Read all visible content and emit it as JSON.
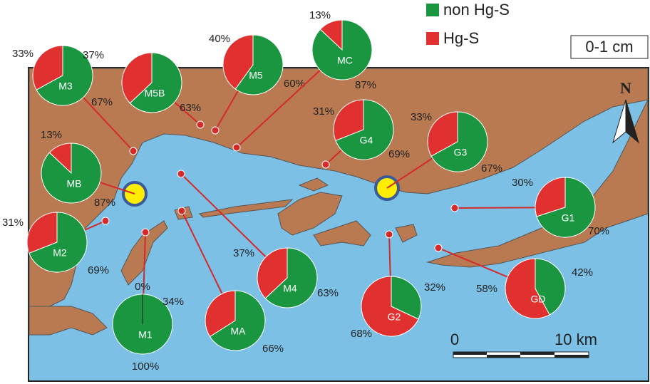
{
  "legend": {
    "items": [
      {
        "label": "non Hg-S",
        "color": "#1a9641"
      },
      {
        "label": "Hg-S",
        "color": "#e03030"
      }
    ],
    "depth": "0-1 cm"
  },
  "north": "N",
  "scale": {
    "start": "0",
    "end": "10 km"
  },
  "sites": [
    {
      "name": "M3",
      "hg": 33,
      "hg_label": "33%",
      "non_hg": 67,
      "non_hg_label": "67%"
    },
    {
      "name": "M5B",
      "hg": 37,
      "hg_label": "37%",
      "non_hg": 63,
      "non_hg_label": "63%"
    },
    {
      "name": "M5",
      "hg": 40,
      "hg_label": "40%",
      "non_hg": 60,
      "non_hg_label": "60%"
    },
    {
      "name": "MC",
      "hg": 13,
      "hg_label": "13%",
      "non_hg": 87,
      "non_hg_label": "87%"
    },
    {
      "name": "MB",
      "hg": 13,
      "hg_label": "13%",
      "non_hg": 87,
      "non_hg_label": "87%"
    },
    {
      "name": "M2",
      "hg": 31,
      "hg_label": "31%",
      "non_hg": 69,
      "non_hg_label": "69%"
    },
    {
      "name": "M1",
      "hg": 0,
      "hg_label": "0%",
      "non_hg": 100,
      "non_hg_label": "100%"
    },
    {
      "name": "MA",
      "hg": 34,
      "hg_label": "34%",
      "non_hg": 66,
      "non_hg_label": "66%"
    },
    {
      "name": "M4",
      "hg": 37,
      "hg_label": "37%",
      "non_hg": 63,
      "non_hg_label": "63%"
    },
    {
      "name": "G4",
      "hg": 31,
      "hg_label": "31%",
      "non_hg": 69,
      "non_hg_label": "69%"
    },
    {
      "name": "G3",
      "hg": 33,
      "hg_label": "33%",
      "non_hg": 67,
      "non_hg_label": "67%"
    },
    {
      "name": "G1",
      "hg": 30,
      "hg_label": "30%",
      "non_hg": 70,
      "non_hg_label": "70%"
    },
    {
      "name": "G2",
      "hg": 68,
      "hg_label": "68%",
      "non_hg": 32,
      "non_hg_label": "32%"
    },
    {
      "name": "GD",
      "hg": 58,
      "hg_label": "58%",
      "non_hg": 42,
      "non_hg_label": "42%"
    }
  ]
}
